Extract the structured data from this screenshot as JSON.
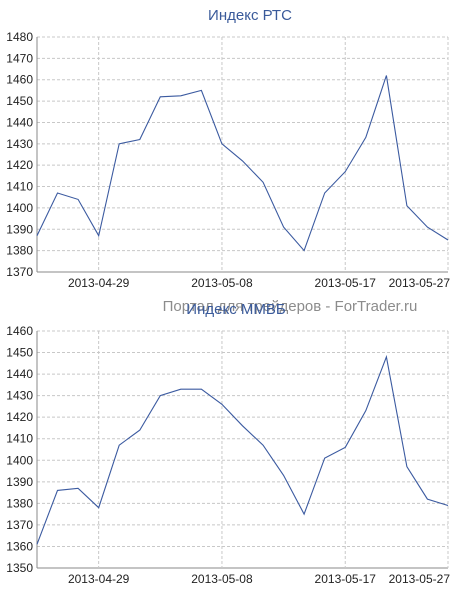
{
  "watermark": "Портал для трейдеров - ForTrader.ru",
  "chart_data": [
    {
      "type": "line",
      "title": "Индекс РТС",
      "ylim": [
        1370,
        1480
      ],
      "yticks": [
        1370,
        1380,
        1390,
        1400,
        1410,
        1420,
        1430,
        1440,
        1450,
        1460,
        1470,
        1480
      ],
      "xticks": [
        "2013-04-29",
        "2013-05-08",
        "2013-05-17",
        "2013-05-27"
      ],
      "grid": true,
      "series": [
        {
          "values": [
            1387,
            1407,
            1404,
            1387,
            1430,
            1432,
            1452,
            1452.5,
            1455,
            1430,
            1422,
            1412,
            1391,
            1380,
            1407,
            1417,
            1433,
            1462,
            1401,
            1391,
            1385
          ]
        }
      ]
    },
    {
      "type": "line",
      "title": "Индекс ММВБ",
      "ylim": [
        1350,
        1460
      ],
      "yticks": [
        1350,
        1360,
        1370,
        1380,
        1390,
        1400,
        1410,
        1420,
        1430,
        1440,
        1450,
        1460
      ],
      "xticks": [
        "2013-04-29",
        "2013-05-08",
        "2013-05-17",
        "2013-05-27"
      ],
      "grid": true,
      "series": [
        {
          "values": [
            1361,
            1386,
            1387,
            1378,
            1407,
            1414,
            1430,
            1433,
            1433,
            1426,
            1416,
            1407,
            1393,
            1375,
            1401,
            1406,
            1423,
            1448,
            1397,
            1382,
            1379
          ]
        }
      ]
    }
  ]
}
